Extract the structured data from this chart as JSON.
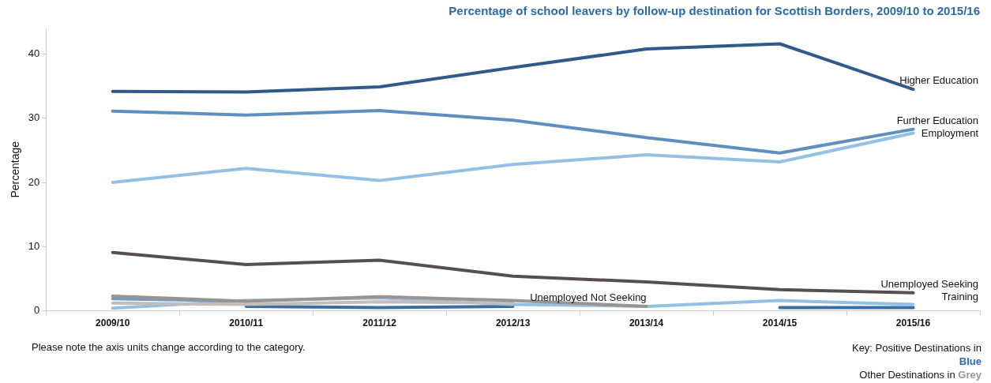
{
  "chart_data": {
    "type": "line",
    "title": "Percentage of school leavers by follow-up destination for Scottish Borders, 2009/10 to 2015/16",
    "ylabel": "Percentage",
    "categories": [
      "2009/10",
      "2010/11",
      "2011/12",
      "2012/13",
      "2013/14",
      "2014/15",
      "2015/16"
    ],
    "series": [
      {
        "name": "Higher Education",
        "color": "#2f5a8a",
        "values": [
          34.2,
          34.1,
          34.9,
          37.9,
          40.8,
          41.6,
          34.5
        ]
      },
      {
        "name": "Further Education",
        "color": "#5e8fbf",
        "values": [
          31.1,
          30.5,
          31.2,
          29.7,
          27.0,
          24.6,
          28.3
        ]
      },
      {
        "name": "Employment",
        "color": "#92c1e3",
        "values": [
          20.0,
          22.2,
          20.3,
          22.8,
          24.3,
          23.2,
          27.7
        ]
      },
      {
        "name": "Unemployed Seeking",
        "color": "#55504d",
        "values": [
          9.1,
          7.2,
          7.9,
          5.4,
          4.5,
          3.3,
          2.8
        ]
      },
      {
        "name": "Unemployed Not Seeking",
        "color": "#9a9490",
        "values": [
          2.3,
          1.5,
          2.2,
          1.6,
          0.7,
          null,
          null
        ]
      },
      {
        "color": "#c4bcb8",
        "values": [
          1.2,
          1.0,
          1.4,
          1.2,
          null,
          null,
          null
        ]
      },
      {
        "color": "#6a9ccc",
        "values": [
          1.9,
          1.5,
          null,
          null,
          null,
          null,
          null
        ]
      },
      {
        "name": "Training",
        "color": "#92c1e3",
        "values": [
          0.4,
          1.6,
          2.0,
          1.0,
          0.7,
          1.6,
          1.0
        ]
      },
      {
        "color": "#3a6ea5",
        "values": [
          null,
          0.7,
          0.5,
          0.7,
          null,
          0.5,
          0.5
        ]
      }
    ],
    "ylim": [
      0,
      44
    ],
    "yticks": [
      0,
      10,
      20,
      30,
      40
    ],
    "grid": false,
    "legend": false,
    "marker": "none",
    "line_style": "solid",
    "annotations": [
      "Please note the axis units change according to the category.",
      "Key: Positive Destinations in",
      "Blue",
      "Other Destinations in",
      "Grey"
    ]
  }
}
